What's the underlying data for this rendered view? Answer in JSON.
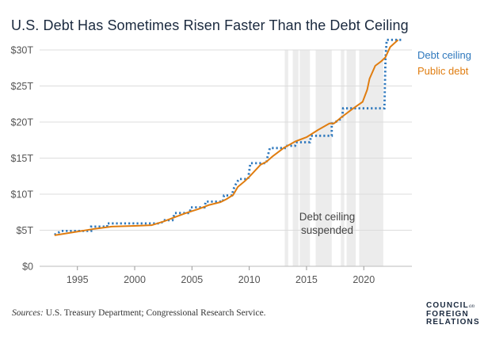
{
  "title": "U.S. Debt Has Sometimes Risen Faster Than the Debt Ceiling",
  "sources_label": "Sources:",
  "sources_text": "U.S. Treasury Department; Congressional Research Service.",
  "logo": {
    "line1": "COUNCIL",
    "line1_small": "on",
    "line2": "FOREIGN",
    "line3": "RELATIONS"
  },
  "colors": {
    "ceiling": "#2e78bd",
    "debt": "#e07d10",
    "suspended": "#ececec",
    "grid": "#dcdcdc",
    "text": "#1b2a3f"
  },
  "chart_data": {
    "type": "line",
    "xlim": [
      1991.7,
      2024.2
    ],
    "ylim": [
      0,
      30
    ],
    "x_ticks": [
      1995,
      2000,
      2005,
      2010,
      2015,
      2020
    ],
    "y_ticks": [
      {
        "value": 0,
        "label": "$0"
      },
      {
        "value": 5,
        "label": "$5T"
      },
      {
        "value": 10,
        "label": "$10T"
      },
      {
        "value": 15,
        "label": "$15T"
      },
      {
        "value": 20,
        "label": "$20T"
      },
      {
        "value": 25,
        "label": "$25T"
      },
      {
        "value": 30,
        "label": "$30T"
      }
    ],
    "grid": true,
    "annotation": {
      "line1": "Debt ceiling",
      "line2": "suspended",
      "x": 2016.8,
      "y": 6.4
    },
    "suspended_periods": [
      [
        2013.1,
        2013.4
      ],
      [
        2013.8,
        2014.3
      ],
      [
        2014.4,
        2015.3
      ],
      [
        2015.8,
        2017.2
      ],
      [
        2018.0,
        2018.3
      ],
      [
        2018.5,
        2019.3
      ],
      [
        2019.6,
        2021.7
      ]
    ],
    "series": [
      {
        "name": "Debt ceiling",
        "style": "dotted",
        "points": [
          [
            1993.0,
            4.37
          ],
          [
            1993.6,
            4.9
          ],
          [
            1996.2,
            4.9
          ],
          [
            1996.2,
            5.5
          ],
          [
            1997.6,
            5.5
          ],
          [
            1997.6,
            5.95
          ],
          [
            2002.3,
            5.95
          ],
          [
            2002.5,
            6.4
          ],
          [
            2003.3,
            6.4
          ],
          [
            2003.5,
            7.38
          ],
          [
            2004.8,
            7.38
          ],
          [
            2004.9,
            8.18
          ],
          [
            2006.1,
            8.18
          ],
          [
            2006.2,
            8.97
          ],
          [
            2007.7,
            8.97
          ],
          [
            2007.8,
            9.82
          ],
          [
            2008.5,
            9.82
          ],
          [
            2008.6,
            10.6
          ],
          [
            2008.8,
            11.3
          ],
          [
            2009.1,
            12.1
          ],
          [
            2009.9,
            12.1
          ],
          [
            2010.1,
            14.3
          ],
          [
            2011.5,
            14.3
          ],
          [
            2011.6,
            15.2
          ],
          [
            2011.8,
            16.4
          ],
          [
            2013.1,
            16.4
          ],
          [
            2013.1,
            16.7
          ],
          [
            2014.0,
            16.7
          ],
          [
            2014.1,
            17.2
          ],
          [
            2015.3,
            17.2
          ],
          [
            2015.4,
            18.1
          ],
          [
            2017.2,
            18.1
          ],
          [
            2017.2,
            19.8
          ],
          [
            2017.3,
            19.8
          ],
          [
            2018.1,
            20.5
          ],
          [
            2018.2,
            21.9
          ],
          [
            2021.8,
            21.9
          ],
          [
            2021.9,
            28.9
          ],
          [
            2022.0,
            31.4
          ],
          [
            2023.4,
            31.4
          ]
        ]
      },
      {
        "name": "Public debt",
        "style": "solid",
        "points": [
          [
            1993.0,
            4.3
          ],
          [
            1995.0,
            4.8
          ],
          [
            1996.5,
            5.2
          ],
          [
            1998.0,
            5.5
          ],
          [
            2000.0,
            5.6
          ],
          [
            2001.5,
            5.7
          ],
          [
            2002.5,
            6.2
          ],
          [
            2003.5,
            6.8
          ],
          [
            2004.5,
            7.4
          ],
          [
            2005.5,
            7.9
          ],
          [
            2006.5,
            8.5
          ],
          [
            2007.5,
            8.9
          ],
          [
            2008.0,
            9.3
          ],
          [
            2008.6,
            9.9
          ],
          [
            2009.0,
            11.0
          ],
          [
            2009.6,
            11.8
          ],
          [
            2010.0,
            12.4
          ],
          [
            2011.0,
            14.1
          ],
          [
            2011.5,
            14.5
          ],
          [
            2012.0,
            15.2
          ],
          [
            2013.0,
            16.4
          ],
          [
            2014.0,
            17.3
          ],
          [
            2015.0,
            17.9
          ],
          [
            2016.0,
            18.9
          ],
          [
            2017.0,
            19.8
          ],
          [
            2017.4,
            19.8
          ],
          [
            2018.0,
            20.6
          ],
          [
            2019.0,
            21.8
          ],
          [
            2019.9,
            22.8
          ],
          [
            2020.3,
            24.5
          ],
          [
            2020.5,
            26.0
          ],
          [
            2021.0,
            27.8
          ],
          [
            2021.5,
            28.4
          ],
          [
            2021.9,
            29.0
          ],
          [
            2022.3,
            30.4
          ],
          [
            2023.0,
            31.4
          ]
        ]
      }
    ]
  }
}
